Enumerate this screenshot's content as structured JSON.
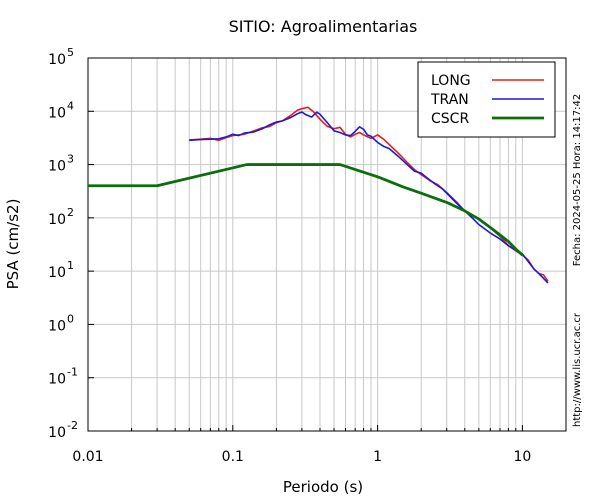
{
  "chart_data": {
    "type": "line",
    "title": "SITIO: Agroalimentarias",
    "xlabel": "Periodo (s)",
    "ylabel": "PSA (cm/s2)",
    "x_scale": "log",
    "y_scale": "log",
    "xlim": [
      0.01,
      20
    ],
    "ylim": [
      0.01,
      100000
    ],
    "grid": true,
    "legend_position": "top-right",
    "x_ticks": [
      {
        "value": 0.01,
        "label": "0.01"
      },
      {
        "value": 0.1,
        "label": "0.1"
      },
      {
        "value": 1,
        "label": "1"
      },
      {
        "value": 10,
        "label": "10"
      }
    ],
    "y_ticks": [
      {
        "value": 0.01,
        "base": "10",
        "exp": "-2"
      },
      {
        "value": 0.1,
        "base": "10",
        "exp": "-1"
      },
      {
        "value": 1,
        "base": "10",
        "exp": "0"
      },
      {
        "value": 10,
        "base": "10",
        "exp": "1"
      },
      {
        "value": 100,
        "base": "10",
        "exp": "2"
      },
      {
        "value": 1000,
        "base": "10",
        "exp": "3"
      },
      {
        "value": 10000,
        "base": "10",
        "exp": "4"
      },
      {
        "value": 100000,
        "base": "10",
        "exp": "5"
      }
    ],
    "series": [
      {
        "name": "LONG",
        "color": "#e0201e",
        "points": [
          [
            0.05,
            2900
          ],
          [
            0.06,
            3000
          ],
          [
            0.07,
            3100
          ],
          [
            0.08,
            2850
          ],
          [
            0.09,
            3200
          ],
          [
            0.1,
            3500
          ],
          [
            0.12,
            3700
          ],
          [
            0.14,
            4300
          ],
          [
            0.16,
            4900
          ],
          [
            0.18,
            5200
          ],
          [
            0.2,
            6100
          ],
          [
            0.22,
            6600
          ],
          [
            0.25,
            8300
          ],
          [
            0.28,
            10500
          ],
          [
            0.3,
            11200
          ],
          [
            0.33,
            11900
          ],
          [
            0.36,
            9800
          ],
          [
            0.4,
            7100
          ],
          [
            0.45,
            5200
          ],
          [
            0.5,
            4700
          ],
          [
            0.55,
            5000
          ],
          [
            0.6,
            3700
          ],
          [
            0.65,
            3300
          ],
          [
            0.7,
            3700
          ],
          [
            0.75,
            4000
          ],
          [
            0.8,
            3600
          ],
          [
            0.9,
            3100
          ],
          [
            1.0,
            3600
          ],
          [
            1.1,
            3000
          ],
          [
            1.2,
            2400
          ],
          [
            1.4,
            1600
          ],
          [
            1.6,
            1100
          ],
          [
            1.8,
            800
          ],
          [
            2.0,
            650
          ],
          [
            2.3,
            500
          ],
          [
            2.6,
            420
          ],
          [
            3.0,
            300
          ],
          [
            3.5,
            200
          ],
          [
            4.0,
            135
          ],
          [
            4.5,
            110
          ],
          [
            5.0,
            95
          ],
          [
            5.5,
            80
          ],
          [
            6.0,
            65
          ],
          [
            7.0,
            45
          ],
          [
            8.0,
            30
          ],
          [
            9.0,
            24
          ],
          [
            10.0,
            20
          ],
          [
            11.0,
            16
          ],
          [
            12.0,
            11
          ],
          [
            13.0,
            9
          ],
          [
            14.0,
            8.5
          ],
          [
            15.0,
            6.5
          ]
        ]
      },
      {
        "name": "TRAN",
        "color": "#1a1ad8",
        "points": [
          [
            0.05,
            2850
          ],
          [
            0.06,
            2950
          ],
          [
            0.07,
            3000
          ],
          [
            0.08,
            3050
          ],
          [
            0.09,
            3300
          ],
          [
            0.1,
            3700
          ],
          [
            0.11,
            3500
          ],
          [
            0.12,
            3900
          ],
          [
            0.14,
            4100
          ],
          [
            0.16,
            4700
          ],
          [
            0.18,
            5600
          ],
          [
            0.2,
            6300
          ],
          [
            0.22,
            6600
          ],
          [
            0.25,
            7600
          ],
          [
            0.28,
            9000
          ],
          [
            0.3,
            9700
          ],
          [
            0.32,
            8600
          ],
          [
            0.35,
            7800
          ],
          [
            0.38,
            9600
          ],
          [
            0.4,
            8800
          ],
          [
            0.45,
            6100
          ],
          [
            0.5,
            4300
          ],
          [
            0.55,
            4000
          ],
          [
            0.6,
            3600
          ],
          [
            0.65,
            3500
          ],
          [
            0.7,
            4200
          ],
          [
            0.75,
            5100
          ],
          [
            0.8,
            4600
          ],
          [
            0.85,
            3600
          ],
          [
            0.9,
            3400
          ],
          [
            1.0,
            2600
          ],
          [
            1.1,
            2200
          ],
          [
            1.2,
            2000
          ],
          [
            1.4,
            1400
          ],
          [
            1.6,
            1000
          ],
          [
            1.8,
            750
          ],
          [
            2.0,
            690
          ],
          [
            2.2,
            560
          ],
          [
            2.5,
            430
          ],
          [
            2.8,
            350
          ],
          [
            3.0,
            290
          ],
          [
            3.5,
            190
          ],
          [
            4.0,
            135
          ],
          [
            4.5,
            100
          ],
          [
            5.0,
            75
          ],
          [
            6.0,
            52
          ],
          [
            7.0,
            40
          ],
          [
            8.0,
            30
          ],
          [
            9.0,
            25
          ],
          [
            10.0,
            21
          ],
          [
            11.0,
            15
          ],
          [
            12.0,
            11
          ],
          [
            13.0,
            9
          ],
          [
            15.0,
            6
          ]
        ]
      },
      {
        "name": "CSCR",
        "color": "#0a6e0a",
        "points": [
          [
            0.01,
            400
          ],
          [
            0.03,
            400
          ],
          [
            0.125,
            1000
          ],
          [
            0.55,
            1000
          ],
          [
            1.0,
            590
          ],
          [
            1.5,
            380
          ],
          [
            2.0,
            290
          ],
          [
            3.0,
            195
          ],
          [
            4.0,
            135
          ],
          [
            5.0,
            95
          ],
          [
            6.0,
            66
          ],
          [
            7.0,
            48
          ],
          [
            8.0,
            36
          ],
          [
            9.0,
            26
          ],
          [
            10.0,
            20
          ]
        ]
      }
    ],
    "side_text_right": "Fecha: 2024-05-25  Hora: 14:17:42",
    "side_text_bottom": "http://www.lis.ucr.ac.cr"
  }
}
